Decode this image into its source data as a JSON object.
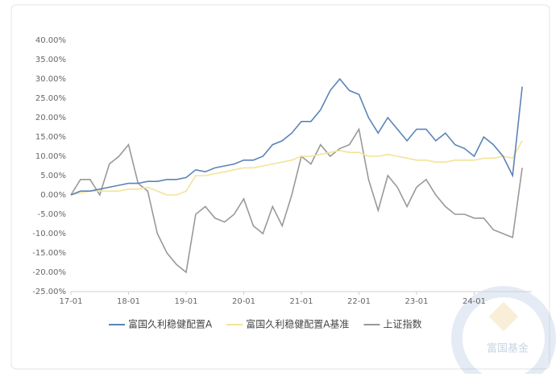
{
  "chart_data": {
    "type": "line",
    "x": [
      "17-01",
      "17-03",
      "17-05",
      "17-07",
      "17-09",
      "17-11",
      "18-01",
      "18-03",
      "18-05",
      "18-07",
      "18-09",
      "18-11",
      "19-01",
      "19-03",
      "19-05",
      "19-07",
      "19-09",
      "19-11",
      "20-01",
      "20-03",
      "20-05",
      "20-07",
      "20-09",
      "20-11",
      "21-01",
      "21-03",
      "21-05",
      "21-07",
      "21-09",
      "21-11",
      "22-01",
      "22-03",
      "22-05",
      "22-07",
      "22-09",
      "22-11",
      "23-01",
      "23-03",
      "23-05",
      "23-07",
      "23-09",
      "23-11",
      "24-01",
      "24-03",
      "24-05",
      "24-07",
      "24-09",
      "24-11"
    ],
    "xticks": [
      "17-01",
      "18-01",
      "19-01",
      "20-01",
      "21-01",
      "22-01",
      "23-01",
      "24-01"
    ],
    "series": [
      {
        "name": "富国久利稳健配置A",
        "color": "#5b84b8",
        "values": [
          0,
          1,
          1,
          1.5,
          2,
          2.5,
          3,
          3,
          3.5,
          3.5,
          4,
          4,
          4.5,
          6.5,
          6,
          7,
          7.5,
          8,
          9,
          9,
          10,
          13,
          14,
          16,
          19,
          19,
          22,
          27,
          30,
          27,
          26,
          20,
          16,
          20,
          17,
          14,
          17,
          17,
          14,
          16,
          13,
          12,
          10,
          15,
          13,
          10,
          5,
          28
        ]
      },
      {
        "name": "富国久利稳健配置A基准",
        "color": "#f3e39a",
        "values": [
          0,
          0.5,
          1,
          1,
          1,
          1,
          1.5,
          1.5,
          2,
          1,
          0,
          0,
          1,
          5,
          5,
          5.5,
          6,
          6.5,
          7,
          7,
          7.5,
          8,
          8.5,
          9,
          10,
          10,
          10.5,
          11,
          11.5,
          11,
          11,
          10,
          10,
          10.5,
          10,
          9.5,
          9,
          9,
          8.5,
          8.5,
          9,
          9,
          9,
          9.5,
          9.5,
          10,
          9.5,
          14
        ]
      },
      {
        "name": "上证指数",
        "color": "#999999",
        "values": [
          0,
          4,
          4,
          0,
          8,
          10,
          13,
          3,
          1,
          -10,
          -15,
          -18,
          -20,
          -5,
          -3,
          -6,
          -7,
          -5,
          -1,
          -8,
          -10,
          -3,
          -8,
          0,
          10,
          8,
          13,
          10,
          12,
          13,
          17,
          4,
          -4,
          5,
          2,
          -3,
          2,
          4,
          0,
          -3,
          -5,
          -5,
          -6,
          -6,
          -9,
          -10,
          -11,
          7
        ]
      }
    ],
    "ylim": [
      -25,
      40
    ],
    "yticks": [
      {
        "value": 40,
        "label": "40.00%"
      },
      {
        "value": 35,
        "label": "35.00%"
      },
      {
        "value": 30,
        "label": "30.00%"
      },
      {
        "value": 25,
        "label": "25.00%"
      },
      {
        "value": 20,
        "label": "20.00%"
      },
      {
        "value": 15,
        "label": "15.00%"
      },
      {
        "value": 10,
        "label": "10.00%"
      },
      {
        "value": 5,
        "label": "5.00%"
      },
      {
        "value": 0,
        "label": "0.00%"
      },
      {
        "value": -5,
        "label": "-5.00%"
      },
      {
        "value": -10,
        "label": "-10.00%"
      },
      {
        "value": -15,
        "label": "-15.00%"
      },
      {
        "value": -20,
        "label": "-20.00%"
      },
      {
        "value": -25,
        "label": "-25.00%"
      }
    ],
    "watermark": "富国基金"
  }
}
